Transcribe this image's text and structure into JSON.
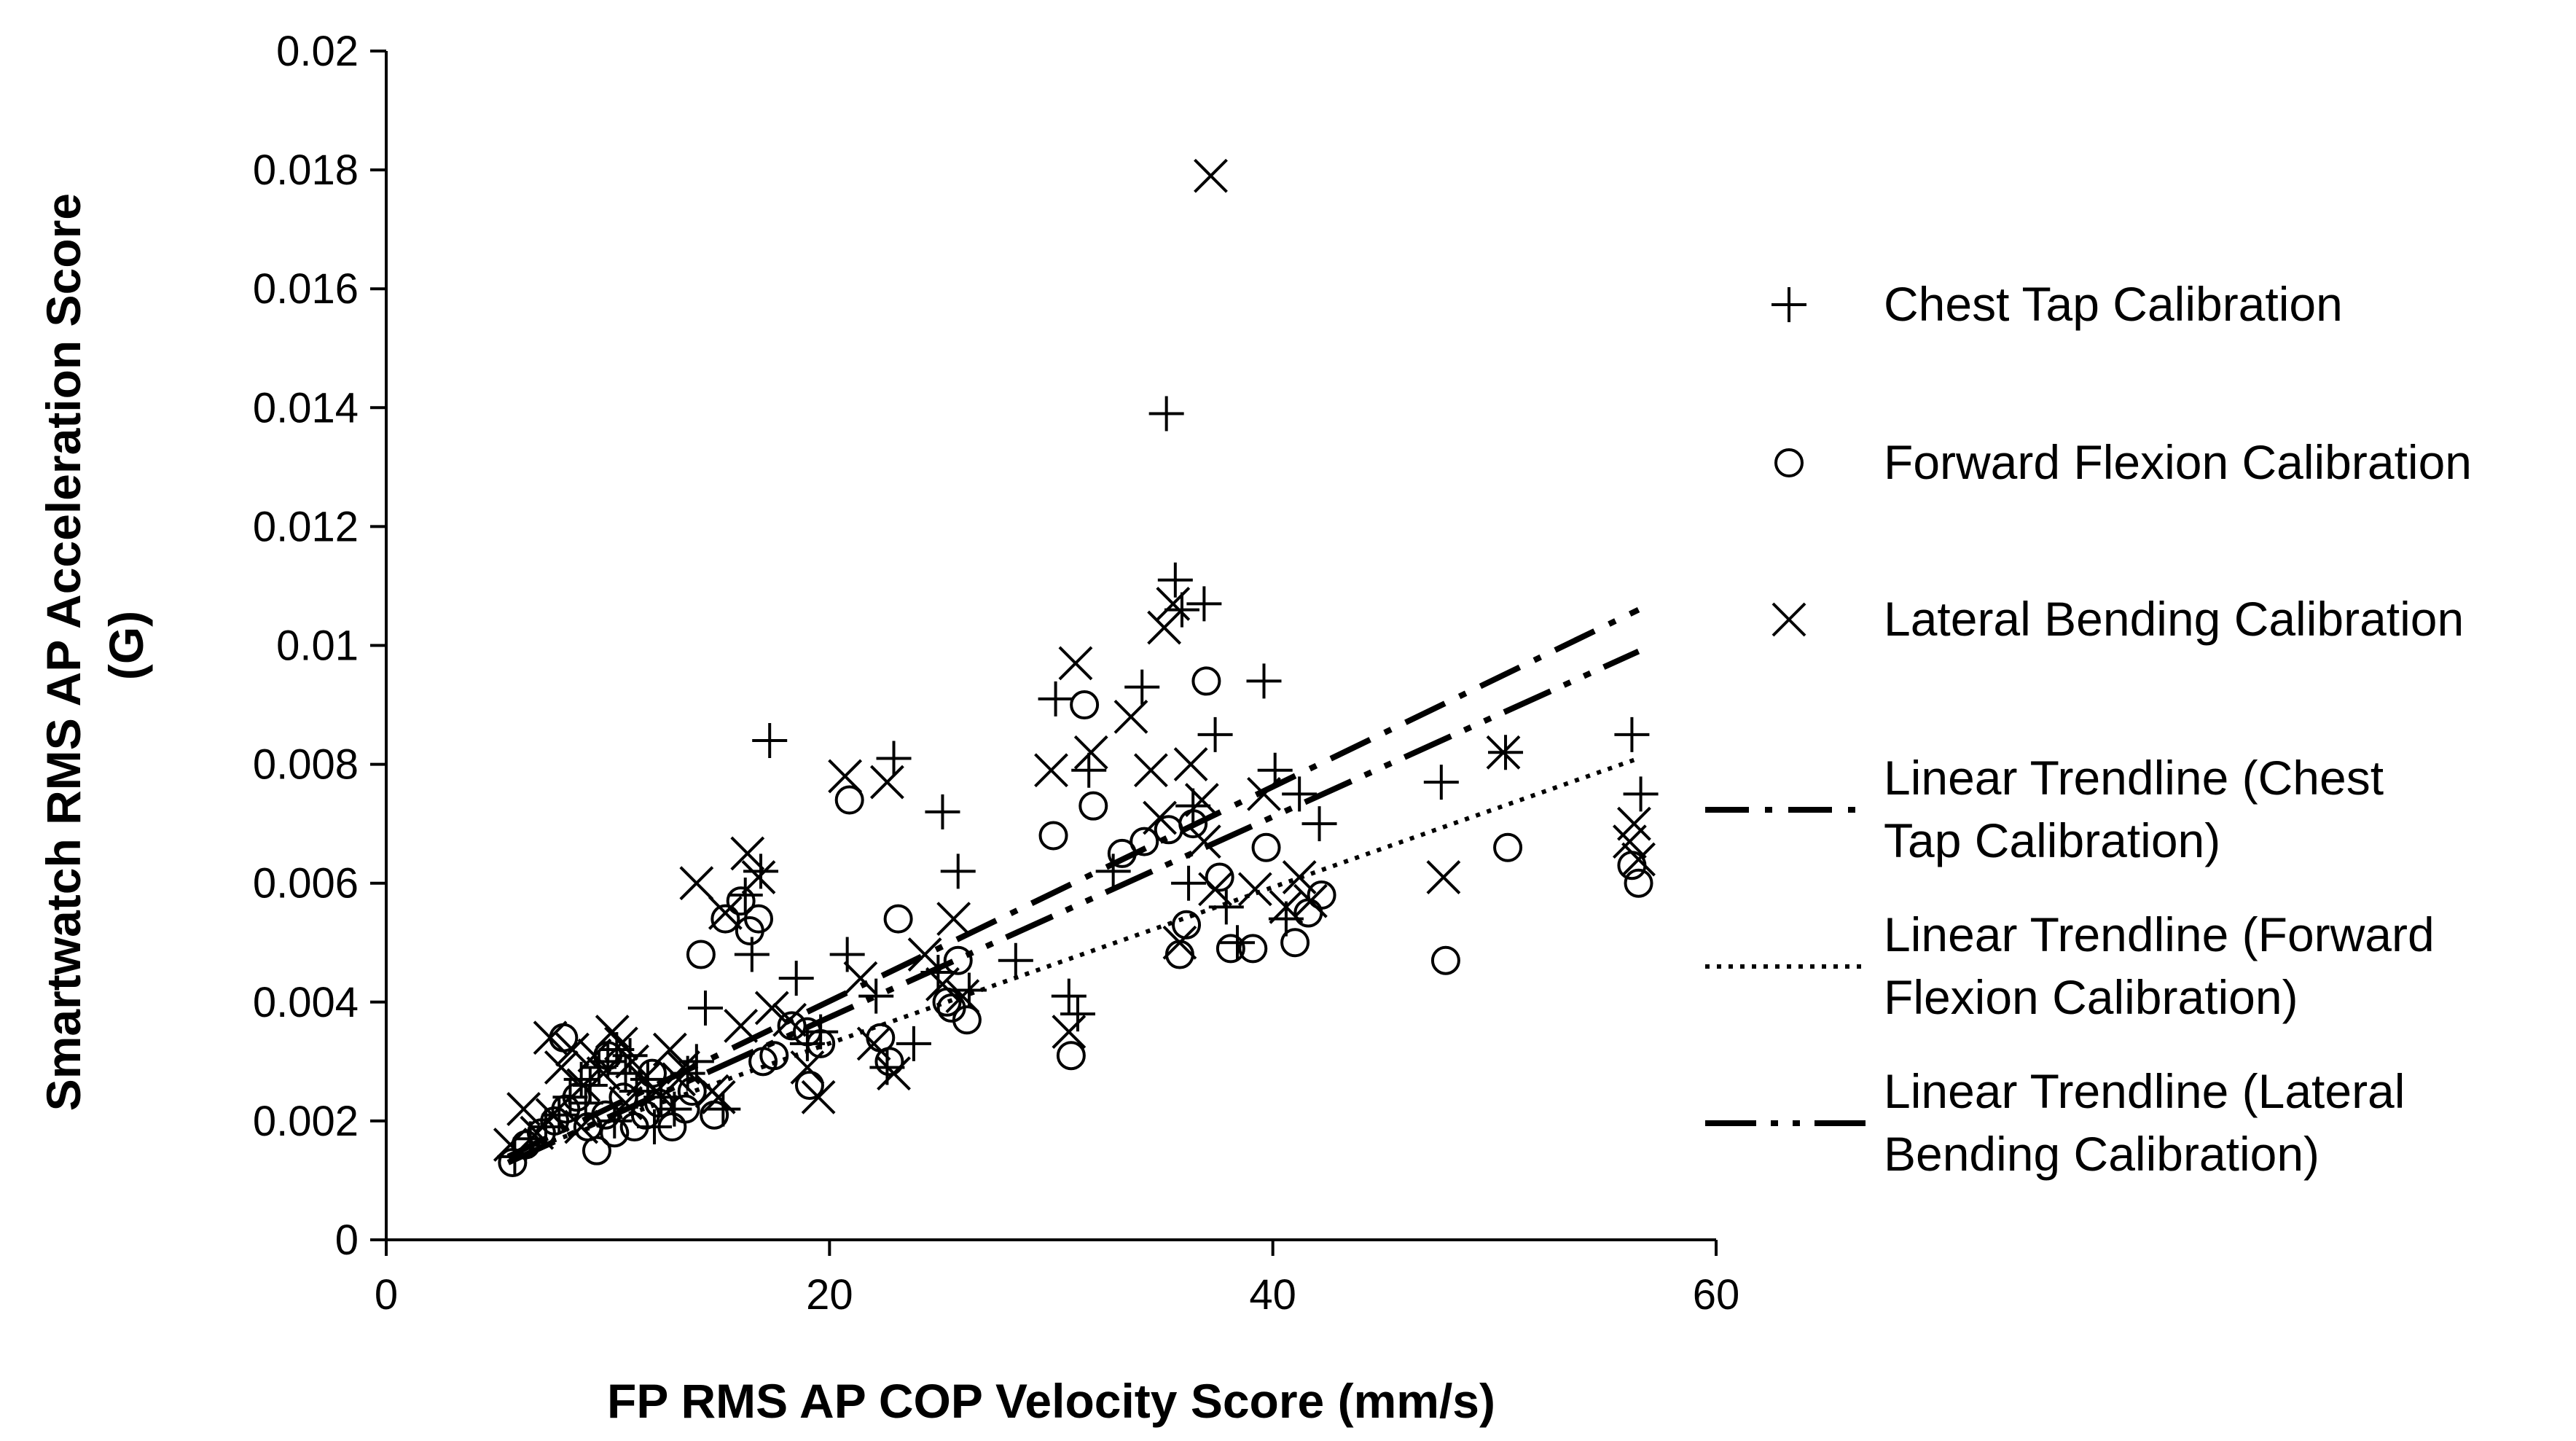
{
  "chart_data": {
    "type": "scatter",
    "title": "",
    "xlabel": "FP RMS AP COP Velocity Score (mm/s)",
    "ylabel_lines": [
      "Smartwatch RMS AP Acceleration Score",
      "(G)"
    ],
    "xlim": [
      0,
      60
    ],
    "ylim": [
      0,
      0.02
    ],
    "xticks": [
      "0",
      "20",
      "40",
      "60"
    ],
    "yticks": [
      "0",
      "0.002",
      "0.004",
      "0.006",
      "0.008",
      "0.01",
      "0.012",
      "0.014",
      "0.016",
      "0.018",
      "0.02"
    ],
    "grid": false,
    "legend_position": "right",
    "series": [
      {
        "name": "Chest Tap Calibration",
        "marker": "plus",
        "x": [
          5.8,
          6.5,
          7.2,
          7.8,
          8.3,
          8.8,
          9.2,
          9.6,
          10.0,
          10.4,
          10.8,
          11.3,
          11.8,
          12.4,
          13.0,
          13.6,
          14.4,
          15.2,
          16.2,
          17.3,
          18.5,
          19.6,
          20.8,
          22.1,
          22.9,
          23.8,
          25.1,
          25.8,
          26.3,
          30.2,
          30.8,
          31.2,
          31.7,
          34.1,
          35.2,
          35.6,
          35.9,
          36.4,
          36.9,
          37.4,
          37.9,
          39.6,
          40.1,
          41.2,
          42.1,
          47.6,
          50.5,
          56.2,
          56.6,
          9.0,
          11.0,
          12.1,
          14.0,
          16.5,
          19.0,
          22.6,
          24.9,
          28.4,
          32.8,
          36.2,
          38.4,
          40.6,
          16.9,
          10.3
        ],
        "y": [
          0.0014,
          0.0017,
          0.0019,
          0.0021,
          0.0024,
          0.0027,
          0.0026,
          0.0029,
          0.003,
          0.0032,
          0.0028,
          0.0025,
          0.0027,
          0.0024,
          0.0022,
          0.0028,
          0.0039,
          0.0022,
          0.0058,
          0.0084,
          0.0044,
          0.0035,
          0.0048,
          0.0041,
          0.0081,
          0.0033,
          0.0072,
          0.0062,
          0.0042,
          0.0091,
          0.0041,
          0.0038,
          0.0079,
          0.0093,
          0.0139,
          0.0111,
          0.0106,
          0.0073,
          0.0107,
          0.0085,
          0.0056,
          0.0094,
          0.0079,
          0.0075,
          0.007,
          0.0077,
          0.0082,
          0.0085,
          0.0075,
          0.0023,
          0.0031,
          0.0019,
          0.003,
          0.0048,
          0.0033,
          0.0029,
          0.0045,
          0.0047,
          0.0062,
          0.006,
          0.005,
          0.0054,
          0.0062,
          0.002
        ]
      },
      {
        "name": "Forward Flexion Calibration",
        "marker": "circle",
        "x": [
          5.7,
          6.3,
          7.0,
          7.6,
          8.1,
          8.6,
          9.1,
          9.5,
          9.9,
          10.3,
          10.7,
          11.2,
          11.7,
          12.3,
          12.9,
          13.5,
          14.2,
          14.8,
          15.3,
          16.0,
          16.8,
          17.5,
          18.3,
          19.1,
          19.6,
          20.9,
          22.3,
          22.7,
          23.1,
          25.3,
          25.8,
          26.2,
          30.1,
          30.9,
          31.5,
          31.9,
          34.2,
          35.3,
          35.8,
          36.4,
          37.0,
          37.6,
          38.1,
          39.1,
          39.7,
          41.0,
          41.6,
          42.2,
          47.8,
          50.6,
          56.2,
          56.5,
          8.0,
          10.0,
          12.0,
          13.8,
          16.4,
          17.0,
          19.0,
          25.5,
          33.2,
          36.1
        ],
        "y": [
          0.0013,
          0.0016,
          0.0018,
          0.002,
          0.0022,
          0.0024,
          0.0019,
          0.0015,
          0.0021,
          0.0018,
          0.0024,
          0.0019,
          0.0021,
          0.0023,
          0.0019,
          0.0022,
          0.0048,
          0.0021,
          0.0054,
          0.0057,
          0.0054,
          0.0031,
          0.0036,
          0.0026,
          0.0033,
          0.0074,
          0.0034,
          0.003,
          0.0054,
          0.004,
          0.0047,
          0.0037,
          0.0068,
          0.0031,
          0.009,
          0.0073,
          0.0067,
          0.0069,
          0.0048,
          0.007,
          0.0094,
          0.0061,
          0.0049,
          0.0049,
          0.0066,
          0.005,
          0.0055,
          0.0058,
          0.0047,
          0.0066,
          0.0063,
          0.006,
          0.0034,
          0.0031,
          0.0028,
          0.0025,
          0.0052,
          0.003,
          0.0035,
          0.0039,
          0.0065,
          0.0053
        ]
      },
      {
        "name": "Lateral Bending Calibration",
        "marker": "x",
        "x": [
          5.6,
          6.2,
          6.8,
          7.4,
          7.9,
          8.4,
          8.9,
          9.4,
          9.8,
          10.2,
          10.6,
          11.1,
          11.6,
          12.2,
          12.8,
          13.4,
          14.0,
          14.7,
          15.3,
          16.3,
          16.8,
          17.4,
          18.2,
          19.0,
          19.5,
          20.7,
          22.0,
          22.6,
          22.9,
          25.1,
          25.6,
          26.0,
          30.0,
          30.8,
          31.1,
          31.8,
          33.6,
          34.5,
          35.1,
          35.5,
          35.8,
          36.3,
          36.9,
          37.4,
          39.2,
          39.6,
          40.6,
          41.2,
          41.7,
          47.7,
          50.4,
          56.1,
          56.3,
          56.5,
          37.2,
          7.5,
          8.8,
          10.8,
          13.2,
          15.0,
          21.4,
          24.3,
          34.9,
          36.8,
          16.0
        ],
        "y": [
          0.0016,
          0.0022,
          0.0018,
          0.0034,
          0.0029,
          0.0032,
          0.0026,
          0.0031,
          0.0028,
          0.0035,
          0.0033,
          0.003,
          0.0027,
          0.0025,
          0.0032,
          0.0029,
          0.006,
          0.0025,
          0.0055,
          0.0065,
          0.0061,
          0.0039,
          0.0037,
          0.0029,
          0.0024,
          0.0078,
          0.0033,
          0.0077,
          0.0028,
          0.0043,
          0.0054,
          0.0041,
          0.0079,
          0.0035,
          0.0097,
          0.0082,
          0.0088,
          0.0079,
          0.0103,
          0.0107,
          0.005,
          0.008,
          0.0067,
          0.0059,
          0.0059,
          0.0075,
          0.0056,
          0.0061,
          0.0057,
          0.0061,
          0.0082,
          0.0067,
          0.007,
          0.0064,
          0.0179,
          0.0021,
          0.0019,
          0.0023,
          0.0027,
          0.0024,
          0.0044,
          0.0048,
          0.0071,
          0.0074,
          0.0036
        ]
      }
    ],
    "trendlines": [
      {
        "name": "Linear Trendline (Chest Tap Calibration)",
        "style": "dash-dot",
        "x": [
          5.5,
          56.5
        ],
        "y": [
          0.0014,
          0.0106
        ]
      },
      {
        "name": "Linear Trendline (Forward Flexion Calibration)",
        "style": "dotted",
        "x": [
          5.5,
          56.5
        ],
        "y": [
          0.0014,
          0.0081
        ]
      },
      {
        "name": "Linear Trendline (Lateral Bending Calibration)",
        "style": "long-dash-dot-dot",
        "x": [
          5.5,
          56.5
        ],
        "y": [
          0.0013,
          0.0099
        ]
      }
    ],
    "legend": [
      {
        "symbol": "plus",
        "lines": [
          "Chest Tap Calibration"
        ]
      },
      {
        "symbol": "circle",
        "lines": [
          "Forward Flexion Calibration"
        ]
      },
      {
        "symbol": "x",
        "lines": [
          "Lateral Bending Calibration"
        ]
      },
      {
        "symbol": "dash-dot",
        "lines": [
          "Linear Trendline (Chest",
          "Tap Calibration)"
        ]
      },
      {
        "symbol": "dotted",
        "lines": [
          "Linear Trendline (Forward",
          "Flexion Calibration)"
        ]
      },
      {
        "symbol": "long-dash-dot-dot",
        "lines": [
          "Linear Trendline (Lateral",
          "Bending Calibration)"
        ]
      }
    ]
  }
}
